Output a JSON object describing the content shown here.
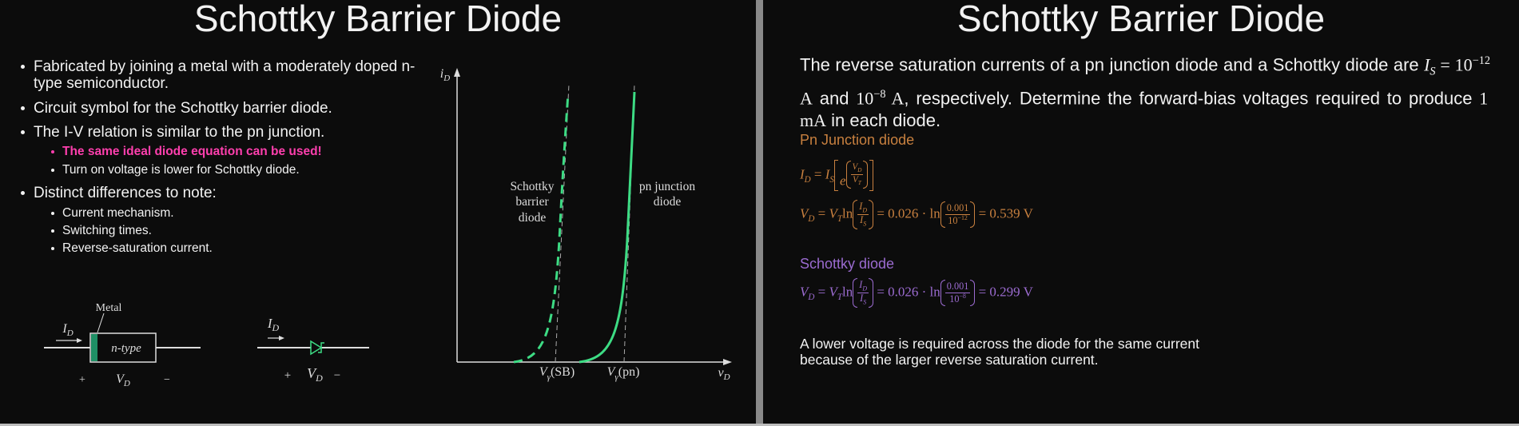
{
  "left_slide": {
    "title": "Schottky Barrier Diode",
    "bullets": [
      {
        "text": "Fabricated by joining a metal with a moderately doped n-type semiconductor."
      },
      {
        "text": "Circuit symbol for the Schottky barrier diode."
      },
      {
        "text": "The I-V relation is similar to the pn junction.",
        "sub_bullets": [
          "The same ideal diode equation can be used!",
          "Turn on voltage is lower for Schottky diode."
        ]
      },
      {
        "text": "Distinct differences to note:",
        "sub_bullets": [
          "Current mechanism.",
          "Switching times.",
          "Reverse-saturation current."
        ]
      }
    ],
    "graph": {
      "y_axis_label": [
        "i",
        "D"
      ],
      "x_axis_label": [
        "v",
        "D"
      ],
      "schottky_label": [
        "Schottky",
        "barrier",
        "diode"
      ],
      "pn_label": [
        "pn junction",
        "diode"
      ],
      "v_sb": [
        "V",
        "γ",
        "(SB)"
      ],
      "v_pn": [
        "V",
        "γ",
        "(pn)"
      ]
    },
    "circuit_symbol": {
      "metal_label": "Metal",
      "current": [
        "I",
        "D"
      ],
      "material": "n-type",
      "plus": "+",
      "voltage": [
        "V",
        "D"
      ],
      "minus": "−"
    },
    "diode_symbol": {
      "current": [
        "I",
        "D"
      ],
      "plus": "+",
      "voltage": [
        "V",
        "D"
      ],
      "minus": "−"
    }
  },
  "right_slide": {
    "title": "Schottky Barrier Diode",
    "problem": [
      "The reverse saturation currents of a pn junction diode and a Schottky diode are ",
      "I",
      "S",
      " = 10",
      "−12",
      " A",
      " and ",
      "10",
      "−8",
      " A",
      ", respectively. Determine the forward-bias voltages required to produce ",
      "1 mA",
      " in each diode."
    ],
    "pn_heading": "Pn Junction diode",
    "pn_eq1": [
      "I",
      "D",
      "=",
      "I",
      "S",
      "e",
      "V",
      "D",
      "V",
      "T"
    ],
    "pn_eq2": [
      "V",
      "D",
      "=",
      "V",
      "T",
      "ln",
      "I",
      "D",
      "I",
      "S",
      "= 0.026 · ln",
      "0.001",
      "10",
      "−12",
      "= 0.539 V"
    ],
    "schottky_heading": "Schottky diode",
    "schottky_eq": [
      "V",
      "D",
      "=",
      "V",
      "T",
      "ln",
      "I",
      "D",
      "I",
      "S",
      "= 0.026 · ln",
      "0.001",
      "10",
      "−8",
      "= 0.299 V"
    ],
    "conclusion": [
      "A lower voltage is required across the diode for the same current",
      "because of the larger reverse saturation current."
    ]
  }
}
